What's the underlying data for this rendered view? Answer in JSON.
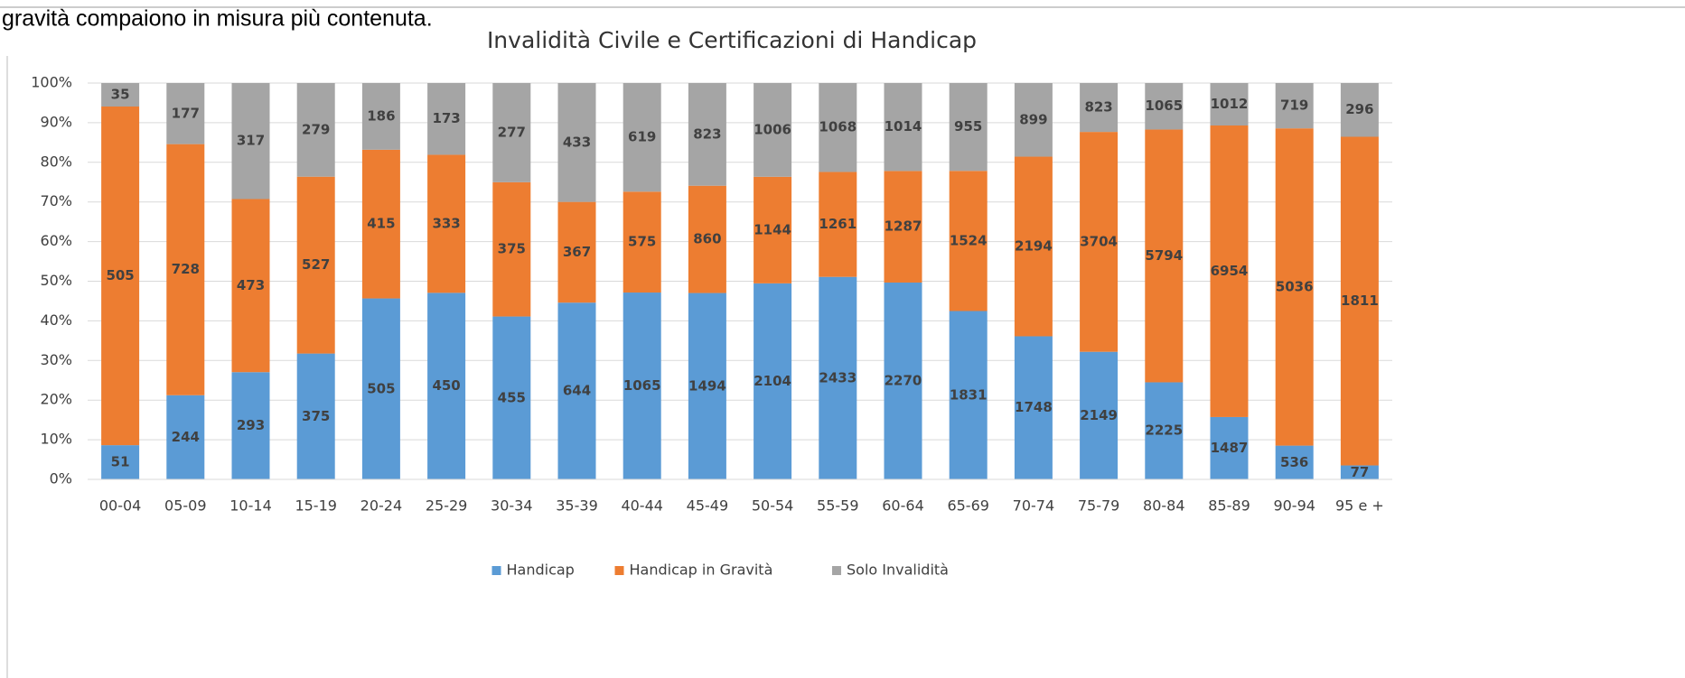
{
  "context_text": "gravità  compaiono in misura più contenuta.",
  "chart_data": {
    "type": "bar",
    "stacked": "percent",
    "title": "Invalidità Civile e Certificazioni di Handicap",
    "categories": [
      "00-04",
      "05-09",
      "10-14",
      "15-19",
      "20-24",
      "25-29",
      "30-34",
      "35-39",
      "40-44",
      "45-49",
      "50-54",
      "55-59",
      "60-64",
      "65-69",
      "70-74",
      "75-79",
      "80-84",
      "85-89",
      "90-94",
      "95 e +"
    ],
    "series": [
      {
        "name": "Handicap",
        "color": "#5b9bd5",
        "values": [
          51,
          244,
          293,
          375,
          505,
          450,
          455,
          644,
          1065,
          1494,
          2104,
          2433,
          2270,
          1831,
          1748,
          2149,
          2225,
          1487,
          536,
          77
        ]
      },
      {
        "name": "Handicap in Gravità",
        "color": "#ed7d31",
        "values": [
          505,
          728,
          473,
          527,
          415,
          333,
          375,
          367,
          575,
          860,
          1144,
          1261,
          1287,
          1524,
          2194,
          3704,
          5794,
          6954,
          5036,
          1811
        ]
      },
      {
        "name": "Solo Invalidità",
        "color": "#a5a5a5",
        "values": [
          35,
          177,
          317,
          279,
          186,
          173,
          277,
          433,
          619,
          823,
          1006,
          1068,
          1014,
          955,
          899,
          823,
          1065,
          1012,
          719,
          296
        ]
      }
    ],
    "ylim": [
      0,
      100
    ],
    "yticks": [
      {
        "value": 0,
        "label": "0%"
      },
      {
        "value": 10,
        "label": "10%"
      },
      {
        "value": 20,
        "label": "20%"
      },
      {
        "value": 30,
        "label": "30%"
      },
      {
        "value": 40,
        "label": "40%"
      },
      {
        "value": 50,
        "label": "50%"
      },
      {
        "value": 60,
        "label": "60%"
      },
      {
        "value": 70,
        "label": "70%"
      },
      {
        "value": 80,
        "label": "80%"
      },
      {
        "value": 90,
        "label": "90%"
      },
      {
        "value": 100,
        "label": "100%"
      }
    ],
    "grid": true,
    "legend": "bottom"
  }
}
